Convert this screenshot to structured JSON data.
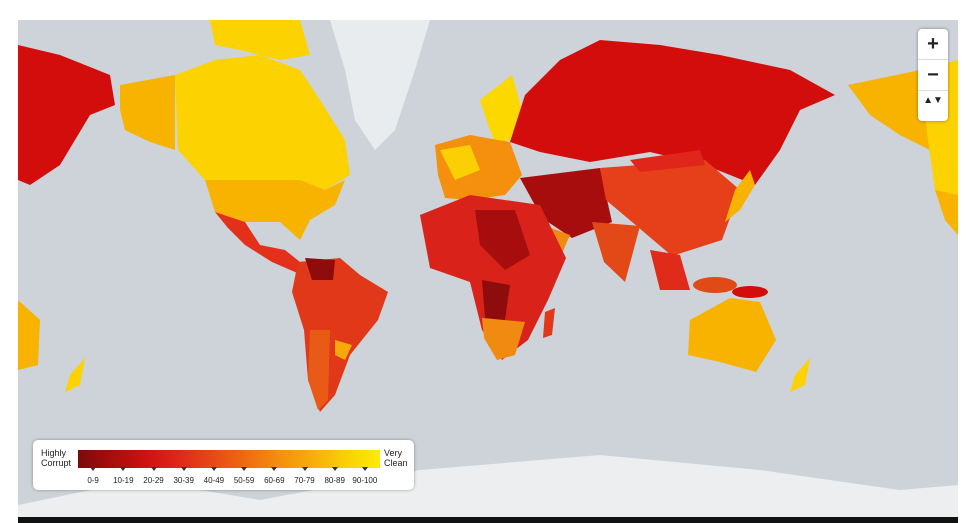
{
  "legend": {
    "low_label": "Highly Corrupt",
    "high_label": "Very Clean",
    "bins": [
      {
        "label": "0-9",
        "color": "#7a0b0b"
      },
      {
        "label": "10-19",
        "color": "#a80d0d"
      },
      {
        "label": "20-29",
        "color": "#cf1010"
      },
      {
        "label": "30-39",
        "color": "#e1271a"
      },
      {
        "label": "40-49",
        "color": "#e84717"
      },
      {
        "label": "50-59",
        "color": "#ef6b12"
      },
      {
        "label": "60-69",
        "color": "#f48f0d"
      },
      {
        "label": "70-79",
        "color": "#f7ae0a"
      },
      {
        "label": "80-89",
        "color": "#fad005"
      },
      {
        "label": "90-100",
        "color": "#fcec00"
      }
    ]
  },
  "controls": {
    "zoom_in": "+",
    "zoom_out": "−",
    "compass": "▲▼"
  }
}
